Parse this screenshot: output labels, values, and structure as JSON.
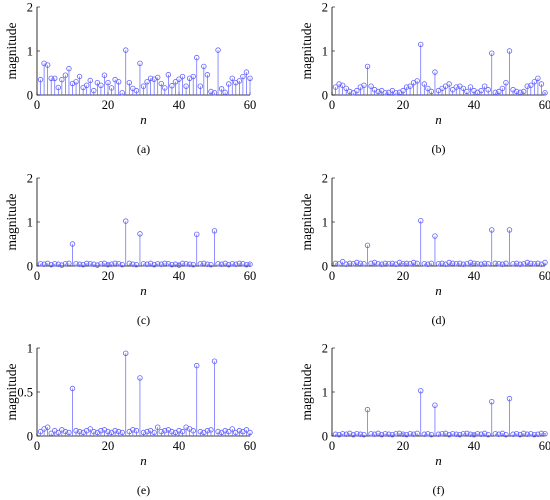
{
  "figure": {
    "ylabel": "magnitude",
    "xlabel": "n"
  },
  "chart_data": [
    {
      "type": "scatter",
      "title": "",
      "panel_label": "(a)",
      "xlabel": "n",
      "ylabel": "magnitude",
      "xlim": [
        0,
        60
      ],
      "ylim": [
        0,
        2
      ],
      "xticks": [
        0,
        20,
        40,
        60
      ],
      "yticks": [
        0,
        1,
        2
      ],
      "x": [
        1,
        2,
        3,
        4,
        5,
        6,
        7,
        8,
        9,
        10,
        11,
        12,
        13,
        14,
        15,
        16,
        17,
        18,
        19,
        20,
        21,
        22,
        23,
        24,
        25,
        26,
        27,
        28,
        29,
        30,
        31,
        32,
        33,
        34,
        35,
        36,
        37,
        38,
        39,
        40,
        41,
        42,
        43,
        44,
        45,
        46,
        47,
        48,
        49,
        50,
        51,
        52,
        53,
        54,
        55,
        56,
        57,
        58,
        59,
        60
      ],
      "values": [
        0.35,
        0.72,
        0.68,
        0.38,
        0.38,
        0.17,
        0.35,
        0.45,
        0.6,
        0.26,
        0.3,
        0.42,
        0.17,
        0.22,
        0.33,
        0.1,
        0.28,
        0.22,
        0.45,
        0.28,
        0.16,
        0.35,
        0.3,
        0.05,
        1.02,
        0.28,
        0.15,
        0.1,
        0.72,
        0.2,
        0.3,
        0.38,
        0.36,
        0.4,
        0.26,
        0.16,
        0.46,
        0.21,
        0.3,
        0.36,
        0.42,
        0.2,
        0.38,
        0.42,
        0.85,
        0.2,
        0.65,
        0.46,
        0.08,
        0.05,
        1.02,
        0.14,
        0.06,
        0.25,
        0.38,
        0.28,
        0.32,
        0.42,
        0.52,
        0.38
      ]
    },
    {
      "type": "scatter",
      "title": "",
      "panel_label": "(b)",
      "xlabel": "n",
      "ylabel": "magnitude",
      "xlim": [
        0,
        60
      ],
      "ylim": [
        0,
        2
      ],
      "xticks": [
        0,
        20,
        40,
        60
      ],
      "yticks": [
        0,
        1,
        2
      ],
      "x": [
        1,
        2,
        3,
        4,
        5,
        6,
        7,
        8,
        9,
        10,
        11,
        12,
        13,
        14,
        15,
        16,
        17,
        18,
        19,
        20,
        21,
        22,
        23,
        24,
        25,
        26,
        27,
        28,
        29,
        30,
        31,
        32,
        33,
        34,
        35,
        36,
        37,
        38,
        39,
        40,
        41,
        42,
        43,
        44,
        45,
        46,
        47,
        48,
        49,
        50,
        51,
        52,
        53,
        54,
        55,
        56,
        57,
        58,
        59,
        60
      ],
      "values": [
        0.18,
        0.25,
        0.22,
        0.15,
        0.08,
        0.05,
        0.1,
        0.18,
        0.22,
        0.65,
        0.2,
        0.12,
        0.08,
        0.1,
        0.05,
        0.06,
        0.1,
        0.05,
        0.06,
        0.1,
        0.18,
        0.2,
        0.28,
        0.32,
        1.15,
        0.25,
        0.15,
        0.08,
        0.52,
        0.1,
        0.15,
        0.2,
        0.25,
        0.12,
        0.18,
        0.2,
        0.15,
        0.08,
        0.18,
        0.1,
        0.06,
        0.1,
        0.2,
        0.12,
        0.95,
        0.06,
        0.08,
        0.15,
        0.28,
        1.0,
        0.12,
        0.08,
        0.06,
        0.08,
        0.2,
        0.22,
        0.3,
        0.38,
        0.25,
        0.05
      ]
    },
    {
      "type": "scatter",
      "title": "",
      "panel_label": "(c)",
      "xlabel": "n",
      "ylabel": "magnitude",
      "xlim": [
        0,
        60
      ],
      "ylim": [
        0,
        2
      ],
      "xticks": [
        0,
        20,
        40,
        60
      ],
      "yticks": [
        0,
        1,
        2
      ],
      "x": [
        1,
        2,
        3,
        4,
        5,
        6,
        7,
        8,
        9,
        10,
        11,
        12,
        13,
        14,
        15,
        16,
        17,
        18,
        19,
        20,
        21,
        22,
        23,
        24,
        25,
        26,
        27,
        28,
        29,
        30,
        31,
        32,
        33,
        34,
        35,
        36,
        37,
        38,
        39,
        40,
        41,
        42,
        43,
        44,
        45,
        46,
        47,
        48,
        49,
        50,
        51,
        52,
        53,
        54,
        55,
        56,
        57,
        58,
        59,
        60
      ],
      "values": [
        0.05,
        0.04,
        0.06,
        0.03,
        0.05,
        0.04,
        0.02,
        0.05,
        0.06,
        0.5,
        0.05,
        0.04,
        0.03,
        0.06,
        0.05,
        0.04,
        0.02,
        0.05,
        0.06,
        0.03,
        0.04,
        0.06,
        0.05,
        0.03,
        1.02,
        0.06,
        0.04,
        0.03,
        0.73,
        0.05,
        0.04,
        0.06,
        0.03,
        0.05,
        0.04,
        0.06,
        0.05,
        0.03,
        0.04,
        0.02,
        0.06,
        0.05,
        0.04,
        0.03,
        0.72,
        0.05,
        0.06,
        0.04,
        0.03,
        0.8,
        0.05,
        0.04,
        0.06,
        0.03,
        0.05,
        0.04,
        0.06,
        0.05,
        0.03,
        0.04
      ]
    },
    {
      "type": "scatter",
      "title": "",
      "panel_label": "(d)",
      "xlabel": "n",
      "ylabel": "magnitude",
      "xlim": [
        0,
        60
      ],
      "ylim": [
        0,
        2
      ],
      "xticks": [
        0,
        20,
        40,
        60
      ],
      "yticks": [
        0,
        1,
        2
      ],
      "x": [
        1,
        2,
        3,
        4,
        5,
        6,
        7,
        8,
        9,
        10,
        11,
        12,
        13,
        14,
        15,
        16,
        17,
        18,
        19,
        20,
        21,
        22,
        23,
        24,
        25,
        26,
        27,
        28,
        29,
        30,
        31,
        32,
        33,
        34,
        35,
        36,
        37,
        38,
        39,
        40,
        41,
        42,
        43,
        44,
        45,
        46,
        47,
        48,
        49,
        50,
        51,
        52,
        53,
        54,
        55,
        56,
        57,
        58,
        59,
        60
      ],
      "values": [
        0.06,
        0.05,
        0.1,
        0.04,
        0.06,
        0.05,
        0.08,
        0.06,
        0.05,
        0.47,
        0.06,
        0.08,
        0.05,
        0.04,
        0.06,
        0.05,
        0.06,
        0.04,
        0.08,
        0.05,
        0.06,
        0.05,
        0.08,
        0.06,
        1.03,
        0.05,
        0.04,
        0.06,
        0.68,
        0.05,
        0.06,
        0.04,
        0.08,
        0.06,
        0.05,
        0.06,
        0.04,
        0.05,
        0.08,
        0.06,
        0.05,
        0.04,
        0.06,
        0.05,
        0.82,
        0.06,
        0.05,
        0.04,
        0.06,
        0.82,
        0.05,
        0.06,
        0.04,
        0.05,
        0.08,
        0.06,
        0.05,
        0.06,
        0.04,
        0.08
      ]
    },
    {
      "type": "scatter",
      "title": "",
      "panel_label": "(e)",
      "xlabel": "n",
      "ylabel": "magnitude",
      "xlim": [
        0,
        60
      ],
      "ylim": [
        0,
        1
      ],
      "xticks": [
        0,
        20,
        40,
        60
      ],
      "yticks": [
        0,
        0.5,
        1
      ],
      "x": [
        1,
        2,
        3,
        4,
        5,
        6,
        7,
        8,
        9,
        10,
        11,
        12,
        13,
        14,
        15,
        16,
        17,
        18,
        19,
        20,
        21,
        22,
        23,
        24,
        25,
        26,
        27,
        28,
        29,
        30,
        31,
        32,
        33,
        34,
        35,
        36,
        37,
        38,
        39,
        40,
        41,
        42,
        43,
        44,
        45,
        46,
        47,
        48,
        49,
        50,
        51,
        52,
        53,
        54,
        55,
        56,
        57,
        58,
        59,
        60
      ],
      "values": [
        0.05,
        0.08,
        0.1,
        0.03,
        0.06,
        0.04,
        0.07,
        0.05,
        0.04,
        0.54,
        0.06,
        0.05,
        0.04,
        0.06,
        0.08,
        0.05,
        0.04,
        0.06,
        0.07,
        0.05,
        0.04,
        0.06,
        0.05,
        0.04,
        0.94,
        0.05,
        0.07,
        0.06,
        0.66,
        0.04,
        0.05,
        0.06,
        0.04,
        0.1,
        0.05,
        0.06,
        0.07,
        0.05,
        0.04,
        0.06,
        0.05,
        0.1,
        0.08,
        0.06,
        0.8,
        0.05,
        0.04,
        0.06,
        0.07,
        0.85,
        0.05,
        0.04,
        0.06,
        0.05,
        0.08,
        0.04,
        0.06,
        0.05,
        0.07,
        0.04
      ]
    },
    {
      "type": "scatter",
      "title": "",
      "panel_label": "(f)",
      "xlabel": "n",
      "ylabel": "magnitude",
      "xlim": [
        0,
        60
      ],
      "ylim": [
        0,
        2
      ],
      "xticks": [
        0,
        20,
        40,
        60
      ],
      "yticks": [
        0,
        1,
        2
      ],
      "x": [
        1,
        2,
        3,
        4,
        5,
        6,
        7,
        8,
        9,
        10,
        11,
        12,
        13,
        14,
        15,
        16,
        17,
        18,
        19,
        20,
        21,
        22,
        23,
        24,
        25,
        26,
        27,
        28,
        29,
        30,
        31,
        32,
        33,
        34,
        35,
        36,
        37,
        38,
        39,
        40,
        41,
        42,
        43,
        44,
        45,
        46,
        47,
        48,
        49,
        50,
        51,
        52,
        53,
        54,
        55,
        56,
        57,
        58,
        59,
        60
      ],
      "values": [
        0.04,
        0.03,
        0.05,
        0.04,
        0.06,
        0.03,
        0.05,
        0.04,
        0.03,
        0.6,
        0.05,
        0.04,
        0.06,
        0.03,
        0.05,
        0.04,
        0.03,
        0.05,
        0.06,
        0.04,
        0.03,
        0.05,
        0.04,
        0.06,
        1.03,
        0.04,
        0.05,
        0.03,
        0.7,
        0.04,
        0.05,
        0.06,
        0.03,
        0.05,
        0.04,
        0.03,
        0.05,
        0.06,
        0.04,
        0.03,
        0.05,
        0.04,
        0.06,
        0.03,
        0.78,
        0.05,
        0.04,
        0.06,
        0.03,
        0.85,
        0.04,
        0.05,
        0.03,
        0.06,
        0.04,
        0.05,
        0.03,
        0.04,
        0.06,
        0.05
      ]
    }
  ]
}
